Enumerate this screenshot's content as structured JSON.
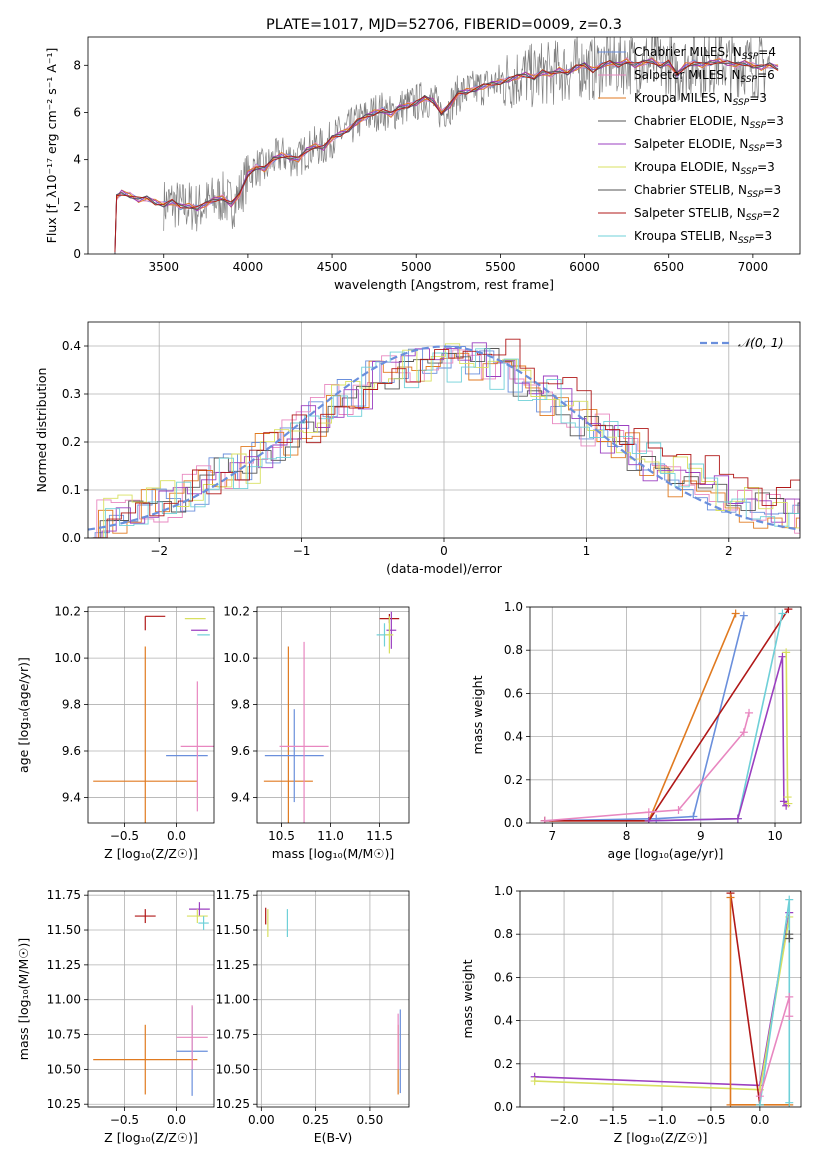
{
  "colors": {
    "chabrier_miles": "#6a8fdc",
    "salpeter_miles": "#e887c0",
    "kroupa_miles": "#e07a20",
    "chabrier_elodie": "#555555",
    "salpeter_elodie": "#9b3fc0",
    "kroupa_elodie": "#d8e060",
    "chabrier_stelib": "#555555",
    "salpeter_stelib": "#b01818",
    "kroupa_stelib": "#6fd0d8",
    "normal": "#6a8fdc",
    "data": "#808080"
  },
  "chart_data": [
    {
      "id": "spectrum",
      "type": "line",
      "title": "PLATE=1017, MJD=52706, FIBERID=0009, z=0.3",
      "xlabel": "wavelength [Angstrom, rest frame]",
      "ylabel": "Flux [f_λ10⁻¹⁷ erg cm⁻² s⁻¹ A⁻¹]",
      "xlim": [
        3050,
        7280
      ],
      "ylim": [
        0,
        9.2
      ],
      "xticks": [
        3500,
        4000,
        4500,
        5000,
        5500,
        6000,
        6500,
        7000
      ],
      "yticks": [
        0,
        2,
        4,
        6,
        8
      ],
      "grid": false,
      "legend_position": "right",
      "legend": [
        {
          "label": "Chabrier MILES, N",
          "sub": "SSP",
          "tail": "=4",
          "color": "chabrier_miles"
        },
        {
          "label": "Salpeter MILES, N",
          "sub": "SSP",
          "tail": "=6",
          "color": "salpeter_miles"
        },
        {
          "label": "Kroupa MILES, N",
          "sub": "SSP",
          "tail": "=3",
          "color": "kroupa_miles"
        },
        {
          "label": "Chabrier ELODIE, N",
          "sub": "SSP",
          "tail": "=3",
          "color": "chabrier_elodie"
        },
        {
          "label": "Salpeter ELODIE, N",
          "sub": "SSP",
          "tail": "=3",
          "color": "salpeter_elodie"
        },
        {
          "label": "Kroupa ELODIE, N",
          "sub": "SSP",
          "tail": "=3",
          "color": "kroupa_elodie"
        },
        {
          "label": "Chabrier STELIB, N",
          "sub": "SSP",
          "tail": "=3",
          "color": "chabrier_stelib"
        },
        {
          "label": "Salpeter STELIB, N",
          "sub": "SSP",
          "tail": "=2",
          "color": "salpeter_stelib"
        },
        {
          "label": "Kroupa STELIB, N",
          "sub": "SSP",
          "tail": "=3",
          "color": "kroupa_stelib"
        }
      ],
      "model_points": [
        [
          3210,
          0
        ],
        [
          3220,
          2.4
        ],
        [
          3250,
          2.6
        ],
        [
          3300,
          2.5
        ],
        [
          3350,
          2.3
        ],
        [
          3400,
          2.35
        ],
        [
          3450,
          2.2
        ],
        [
          3500,
          2.1
        ],
        [
          3550,
          2.2
        ],
        [
          3600,
          2.0
        ],
        [
          3650,
          2.05
        ],
        [
          3700,
          1.95
        ],
        [
          3750,
          2.1
        ],
        [
          3800,
          2.3
        ],
        [
          3850,
          2.4
        ],
        [
          3900,
          2.1
        ],
        [
          3950,
          2.5
        ],
        [
          4000,
          3.4
        ],
        [
          4050,
          3.7
        ],
        [
          4100,
          3.6
        ],
        [
          4150,
          4.0
        ],
        [
          4200,
          4.2
        ],
        [
          4250,
          4.1
        ],
        [
          4300,
          4.0
        ],
        [
          4350,
          4.4
        ],
        [
          4400,
          4.6
        ],
        [
          4450,
          4.5
        ],
        [
          4500,
          4.9
        ],
        [
          4550,
          5.1
        ],
        [
          4600,
          5.3
        ],
        [
          4650,
          5.6
        ],
        [
          4700,
          5.8
        ],
        [
          4750,
          6.0
        ],
        [
          4800,
          6.1
        ],
        [
          4850,
          5.9
        ],
        [
          4900,
          6.2
        ],
        [
          4950,
          6.3
        ],
        [
          5000,
          6.4
        ],
        [
          5050,
          6.6
        ],
        [
          5100,
          6.5
        ],
        [
          5150,
          6.0
        ],
        [
          5200,
          6.3
        ],
        [
          5250,
          6.8
        ],
        [
          5300,
          6.9
        ],
        [
          5350,
          7.0
        ],
        [
          5400,
          7.1
        ],
        [
          5450,
          7.2
        ],
        [
          5500,
          7.3
        ],
        [
          5550,
          7.4
        ],
        [
          5600,
          7.5
        ],
        [
          5650,
          7.6
        ],
        [
          5700,
          7.5
        ],
        [
          5750,
          7.7
        ],
        [
          5800,
          7.6
        ],
        [
          5850,
          7.8
        ],
        [
          5900,
          7.7
        ],
        [
          5950,
          7.9
        ],
        [
          6000,
          8.0
        ],
        [
          6050,
          7.8
        ],
        [
          6100,
          8.0
        ],
        [
          6150,
          8.1
        ],
        [
          6200,
          8.0
        ],
        [
          6250,
          8.2
        ],
        [
          6300,
          8.0
        ],
        [
          6350,
          8.1
        ],
        [
          6400,
          8.2
        ],
        [
          6450,
          8.0
        ],
        [
          6500,
          8.1
        ],
        [
          6550,
          7.6
        ],
        [
          6600,
          8.0
        ],
        [
          6650,
          8.1
        ],
        [
          6700,
          8.0
        ],
        [
          6750,
          8.1
        ],
        [
          6800,
          8.2
        ],
        [
          6850,
          8.1
        ],
        [
          6900,
          8.0
        ],
        [
          6950,
          8.1
        ],
        [
          7000,
          8.0
        ],
        [
          7050,
          7.9
        ],
        [
          7100,
          8.0
        ],
        [
          7150,
          7.9
        ]
      ]
    },
    {
      "id": "residuals",
      "type": "histogram",
      "xlabel": "(data-model)/error",
      "ylabel": "Normed distribution",
      "xlim": [
        -2.5,
        2.5
      ],
      "ylim": [
        0,
        0.45
      ],
      "xticks": [
        -2,
        -1,
        0,
        1,
        2
      ],
      "yticks": [
        0.0,
        0.1,
        0.2,
        0.3,
        0.4
      ],
      "grid": true,
      "legend_position": "top-right",
      "legend_label": "𝒩(0, 1)",
      "normal_curve": {
        "mean": 0,
        "sigma": 1
      }
    },
    {
      "id": "age_vs_z",
      "type": "scatter",
      "xlabel": "Z [log₁₀(Z/Z☉)]",
      "ylabel": "age  [log₁₀(age/yr)]",
      "xlim": [
        -0.85,
        0.36
      ],
      "ylim": [
        9.29,
        10.22
      ],
      "xticks": [
        -0.5,
        0.0
      ],
      "yticks": [
        9.4,
        9.6,
        9.8,
        10.0,
        10.2
      ],
      "grid": true,
      "points": [
        {
          "x": -0.3,
          "xerr": 0.5,
          "y": 9.47,
          "yerr": 0.58,
          "color": "kroupa_miles"
        },
        {
          "x": 0.1,
          "xerr": 0.2,
          "y": 9.58,
          "yerr": 0.0,
          "color": "chabrier_miles"
        },
        {
          "x": 0.2,
          "xerr": 0.16,
          "y": 9.62,
          "yerr": 0.28,
          "color": "salpeter_miles"
        },
        {
          "x": -0.3,
          "xerr": 0.0,
          "y": 10.18,
          "yerr": 0.0,
          "color": "salpeter_stelib"
        },
        {
          "x": 0.18,
          "xerr": 0.1,
          "y": 10.17,
          "yerr": 0.0,
          "color": "kroupa_elodie"
        },
        {
          "x": 0.22,
          "xerr": 0.08,
          "y": 10.12,
          "yerr": 0.0,
          "color": "salpeter_elodie"
        },
        {
          "x": 0.26,
          "xerr": 0.06,
          "y": 10.1,
          "yerr": 0.0,
          "color": "kroupa_stelib"
        }
      ]
    },
    {
      "id": "age_vs_mass",
      "type": "scatter",
      "xlabel": "mass [log₁₀(M/M☉)]",
      "ylabel": "",
      "xlim": [
        10.25,
        11.8
      ],
      "ylim": [
        9.29,
        10.22
      ],
      "xticks": [
        10.5,
        11.0,
        11.5
      ],
      "yticks": [
        9.4,
        9.6,
        9.8,
        10.0,
        10.2
      ],
      "grid": true,
      "points": [
        {
          "x": 10.57,
          "xerr": 0.25,
          "y": 9.47,
          "yerr": 0.58,
          "color": "kroupa_miles"
        },
        {
          "x": 10.63,
          "xerr": 0.3,
          "y": 9.58,
          "yerr": 0.2,
          "color": "chabrier_miles"
        },
        {
          "x": 10.73,
          "xerr": 0.25,
          "y": 9.62,
          "yerr": 0.45,
          "color": "salpeter_miles"
        },
        {
          "x": 11.6,
          "xerr": 0.1,
          "y": 10.17,
          "yerr": 0.02,
          "color": "salpeter_stelib"
        },
        {
          "x": 11.62,
          "xerr": 0.05,
          "y": 10.12,
          "yerr": 0.08,
          "color": "salpeter_elodie"
        },
        {
          "x": 11.55,
          "xerr": 0.08,
          "y": 10.1,
          "yerr": 0.05,
          "color": "kroupa_stelib"
        },
        {
          "x": 11.6,
          "xerr": 0.04,
          "y": 10.1,
          "yerr": 0.08,
          "color": "kroupa_elodie"
        }
      ]
    },
    {
      "id": "weight_vs_age",
      "type": "line",
      "xlabel": "age  [log₁₀(age/yr)]",
      "ylabel": "mass weight",
      "xlim": [
        6.7,
        10.35
      ],
      "ylim": [
        0,
        1.0
      ],
      "xticks": [
        7,
        8,
        9,
        10
      ],
      "yticks": [
        0.0,
        0.2,
        0.4,
        0.6,
        0.8,
        1.0
      ],
      "grid": true,
      "series": [
        {
          "color": "kroupa_miles",
          "x": [
            6.9,
            8.3,
            9.47
          ],
          "y": [
            0.01,
            0.01,
            0.97
          ]
        },
        {
          "color": "chabrier_miles",
          "x": [
            6.9,
            8.4,
            8.9,
            9.58
          ],
          "y": [
            0.01,
            0.02,
            0.03,
            0.96
          ]
        },
        {
          "color": "salpeter_stelib",
          "x": [
            6.9,
            8.3,
            10.18
          ],
          "y": [
            0.01,
            0.01,
            0.99
          ]
        },
        {
          "color": "salpeter_miles",
          "x": [
            6.9,
            8.3,
            8.7,
            9.58,
            9.65
          ],
          "y": [
            0.01,
            0.05,
            0.06,
            0.42,
            0.51
          ]
        },
        {
          "color": "kroupa_stelib",
          "x": [
            8.3,
            9.5,
            10.1
          ],
          "y": [
            0.01,
            0.02,
            0.97
          ]
        },
        {
          "color": "salpeter_elodie",
          "x": [
            8.3,
            9.5,
            10.1,
            10.12,
            10.15
          ],
          "y": [
            0.01,
            0.02,
            0.77,
            0.1,
            0.08
          ]
        },
        {
          "color": "kroupa_elodie",
          "x": [
            10.15,
            10.17,
            10.18
          ],
          "y": [
            0.79,
            0.12,
            0.09
          ]
        }
      ]
    },
    {
      "id": "mass_vs_z",
      "type": "scatter",
      "xlabel": "Z [log₁₀(Z/Z☉)]",
      "ylabel": "mass [log₁₀(M/M☉)]",
      "xlim": [
        -0.85,
        0.36
      ],
      "ylim": [
        10.23,
        11.78
      ],
      "xticks": [
        -0.5,
        0.0
      ],
      "yticks": [
        10.25,
        10.5,
        10.75,
        11.0,
        11.25,
        11.5,
        11.75
      ],
      "grid": true,
      "points": [
        {
          "x": -0.3,
          "xerr": 0.5,
          "y": 10.57,
          "yerr": 0.25,
          "color": "kroupa_miles"
        },
        {
          "x": 0.15,
          "xerr": 0.15,
          "y": 10.63,
          "yerr": 0.32,
          "color": "chabrier_miles"
        },
        {
          "x": 0.15,
          "xerr": 0.15,
          "y": 10.73,
          "yerr": 0.23,
          "color": "salpeter_miles"
        },
        {
          "x": -0.3,
          "xerr": 0.1,
          "y": 11.6,
          "yerr": 0.05,
          "color": "salpeter_stelib"
        },
        {
          "x": 0.22,
          "xerr": 0.1,
          "y": 11.65,
          "yerr": 0.05,
          "color": "salpeter_elodie"
        },
        {
          "x": 0.2,
          "xerr": 0.1,
          "y": 11.6,
          "yerr": 0.05,
          "color": "kroupa_elodie"
        },
        {
          "x": 0.26,
          "xerr": 0.05,
          "y": 11.55,
          "yerr": 0.05,
          "color": "kroupa_stelib"
        }
      ]
    },
    {
      "id": "mass_vs_ebv",
      "type": "scatter",
      "xlabel": "E(B-V)",
      "ylabel": "",
      "xlim": [
        -0.02,
        0.68
      ],
      "ylim": [
        10.23,
        11.78
      ],
      "xticks": [
        0.0,
        0.25,
        0.5
      ],
      "yticks": [
        10.25,
        10.5,
        10.75,
        11.0,
        11.25,
        11.5,
        11.75
      ],
      "grid": true,
      "points": [
        {
          "x": 0.02,
          "xerr": 0,
          "y": 11.6,
          "yerr": 0.06,
          "color": "salpeter_stelib"
        },
        {
          "x": 0.03,
          "xerr": 0,
          "y": 11.55,
          "yerr": 0.1,
          "color": "kroupa_elodie"
        },
        {
          "x": 0.12,
          "xerr": 0,
          "y": 11.55,
          "yerr": 0.1,
          "color": "kroupa_stelib"
        },
        {
          "x": 0.63,
          "xerr": 0,
          "y": 10.57,
          "yerr": 0.25,
          "color": "kroupa_miles"
        },
        {
          "x": 0.64,
          "xerr": 0,
          "y": 10.63,
          "yerr": 0.3,
          "color": "chabrier_miles"
        },
        {
          "x": 0.63,
          "xerr": 0,
          "y": 10.7,
          "yerr": 0.2,
          "color": "salpeter_miles"
        }
      ]
    },
    {
      "id": "weight_vs_z",
      "type": "line",
      "xlabel": "Z [log₁₀(Z/Z☉)]",
      "ylabel": "mass weight",
      "xlim": [
        -2.45,
        0.42
      ],
      "ylim": [
        0,
        1.0
      ],
      "xticks": [
        -2.0,
        -1.5,
        -1.0,
        -0.5,
        0.0
      ],
      "yticks": [
        0.0,
        0.2,
        0.4,
        0.6,
        0.8,
        1.0
      ],
      "grid": true,
      "series": [
        {
          "color": "salpeter_elodie",
          "x": [
            -2.3,
            0.0,
            0.3
          ],
          "y": [
            0.14,
            0.1,
            0.9
          ]
        },
        {
          "color": "kroupa_elodie",
          "x": [
            -2.3,
            0.0,
            0.3
          ],
          "y": [
            0.12,
            0.08,
            0.88
          ]
        },
        {
          "color": "salpeter_stelib",
          "x": [
            -0.3,
            0.0
          ],
          "y": [
            0.99,
            0.01
          ]
        },
        {
          "color": "kroupa_miles",
          "x": [
            -0.3,
            -0.3,
            0.3
          ],
          "y": [
            0.97,
            0.01,
            0.01
          ]
        },
        {
          "color": "kroupa_stelib",
          "x": [
            0.0,
            0.3,
            0.3
          ],
          "y": [
            0.01,
            0.96,
            0.02
          ]
        },
        {
          "color": "salpeter_miles",
          "x": [
            0.0,
            0.3,
            0.3
          ],
          "y": [
            0.05,
            0.51,
            0.42
          ]
        },
        {
          "color": "chabrier_elodie",
          "x": [
            0.3,
            0.3
          ],
          "y": [
            0.78,
            0.8
          ]
        }
      ]
    }
  ]
}
